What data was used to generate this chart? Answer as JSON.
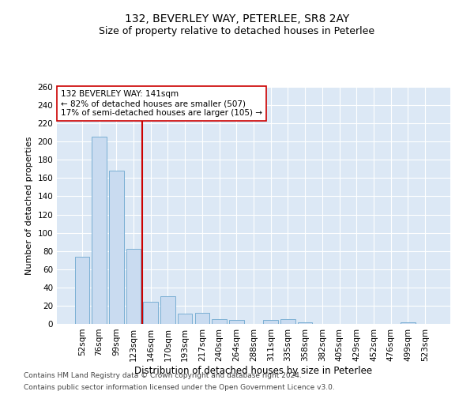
{
  "title": "132, BEVERLEY WAY, PETERLEE, SR8 2AY",
  "subtitle": "Size of property relative to detached houses in Peterlee",
  "xlabel": "Distribution of detached houses by size in Peterlee",
  "ylabel": "Number of detached properties",
  "categories": [
    "52sqm",
    "76sqm",
    "99sqm",
    "123sqm",
    "146sqm",
    "170sqm",
    "193sqm",
    "217sqm",
    "240sqm",
    "264sqm",
    "288sqm",
    "311sqm",
    "335sqm",
    "358sqm",
    "382sqm",
    "405sqm",
    "429sqm",
    "452sqm",
    "476sqm",
    "499sqm",
    "523sqm"
  ],
  "values": [
    74,
    205,
    168,
    82,
    24,
    30,
    11,
    12,
    5,
    4,
    0,
    4,
    5,
    2,
    0,
    0,
    0,
    0,
    0,
    2,
    0
  ],
  "bar_color": "#c9dbf0",
  "bar_edgecolor": "#7aafd4",
  "vline_color": "#cc0000",
  "vline_pos": 3.5,
  "annotation_text": "132 BEVERLEY WAY: 141sqm\n← 82% of detached houses are smaller (507)\n17% of semi-detached houses are larger (105) →",
  "annotation_box_color": "#ffffff",
  "annotation_box_edgecolor": "#cc0000",
  "ylim": [
    0,
    260
  ],
  "yticks": [
    0,
    20,
    40,
    60,
    80,
    100,
    120,
    140,
    160,
    180,
    200,
    220,
    240,
    260
  ],
  "bg_color": "#dce8f5",
  "grid_color": "#ffffff",
  "footer_line1": "Contains HM Land Registry data © Crown copyright and database right 2024.",
  "footer_line2": "Contains public sector information licensed under the Open Government Licence v3.0.",
  "title_fontsize": 10,
  "subtitle_fontsize": 9,
  "xlabel_fontsize": 8.5,
  "ylabel_fontsize": 8,
  "tick_fontsize": 7.5,
  "annotation_fontsize": 7.5,
  "footer_fontsize": 6.5
}
